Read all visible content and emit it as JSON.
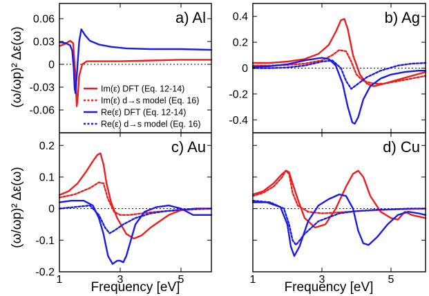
{
  "figure": {
    "xlabel": "Frequency [eV]",
    "ylabel": "(ω/ωp)² Δε(ω)",
    "legend": [
      {
        "label": "Im(ε) DFT (Eq. 12-14)",
        "color": "#ee1c1c",
        "dash": "solid"
      },
      {
        "label": "Im(ε) d→s model (Eq. 16)",
        "color": "#ee1c1c",
        "dash": "dashed"
      },
      {
        "label": "Re(ε) DFT (Eq. 12-14)",
        "color": "#1a1ae6",
        "dash": "solid"
      },
      {
        "label": "Re(ε) d→s model (Eq. 16)",
        "color": "#1a1ae6",
        "dash": "dashed"
      }
    ],
    "colors": {
      "im": "#ee1c1c",
      "re": "#1a1ae6"
    }
  },
  "chart_data": [
    {
      "type": "line",
      "label": "a) Al",
      "xlim": [
        1,
        6
      ],
      "ylim": [
        -0.09,
        0.08
      ],
      "xticks": [
        1,
        3,
        5
      ],
      "xtick_labels": [
        "",
        "",
        ""
      ],
      "yticks": [
        -0.06,
        -0.03,
        0,
        0.03,
        0.06
      ],
      "ytick_labels": [
        "-0.06",
        "-0.03",
        "0",
        "0.03",
        "0.06"
      ],
      "series": [
        {
          "name": "Im(ε) DFT (Eq. 12-14)",
          "part": "im",
          "dash": "solid",
          "x": [
            1.0,
            1.2,
            1.35,
            1.45,
            1.52,
            1.57,
            1.6,
            1.65,
            1.75,
            1.9,
            2.1,
            2.5,
            3.0,
            4.0,
            5.0,
            6.0
          ],
          "y": [
            0.024,
            0.027,
            0.031,
            0.028,
            -0.01,
            -0.055,
            -0.045,
            -0.015,
            0.0,
            0.004,
            0.004,
            0.004,
            0.004,
            0.005,
            0.006,
            0.006
          ]
        },
        {
          "name": "Re(ε) DFT (Eq. 12-14)",
          "part": "re",
          "dash": "solid",
          "x": [
            1.0,
            1.2,
            1.35,
            1.42,
            1.47,
            1.5,
            1.53,
            1.58,
            1.65,
            1.72,
            1.85,
            2.0,
            2.3,
            2.7,
            3.2,
            4.0,
            5.0,
            6.0
          ],
          "y": [
            0.029,
            0.028,
            0.025,
            0.018,
            -0.005,
            -0.032,
            -0.038,
            -0.01,
            0.03,
            0.046,
            0.038,
            0.031,
            0.026,
            0.023,
            0.021,
            0.02,
            0.02,
            0.019
          ]
        }
      ]
    },
    {
      "type": "line",
      "label": "b) Ag",
      "xlim": [
        1,
        6
      ],
      "ylim": [
        -0.5,
        0.5
      ],
      "xticks": [
        1,
        3,
        5
      ],
      "xtick_labels": [
        "",
        "",
        ""
      ],
      "yticks": [
        -0.4,
        -0.2,
        0,
        0.2,
        0.4
      ],
      "ytick_labels": [
        "-0.4",
        "-0.2",
        "0",
        "0.2",
        "0.4"
      ],
      "series": [
        {
          "name": "Im(ε) DFT (Eq. 12-14)",
          "part": "im",
          "dash": "solid",
          "x": [
            1.0,
            1.5,
            2.0,
            2.5,
            2.9,
            3.2,
            3.4,
            3.55,
            3.65,
            3.75,
            3.9,
            4.1,
            4.3,
            4.5,
            4.8,
            5.2,
            5.6,
            6.0
          ],
          "y": [
            0.04,
            0.04,
            0.05,
            0.07,
            0.11,
            0.18,
            0.28,
            0.37,
            0.38,
            0.3,
            0.1,
            -0.05,
            -0.12,
            -0.14,
            -0.12,
            -0.09,
            -0.06,
            -0.03
          ]
        },
        {
          "name": "Im(ε) d→s model (Eq. 16)",
          "part": "im",
          "dash": "dashed",
          "x": [
            1.0,
            1.5,
            2.0,
            2.5,
            3.0,
            3.3,
            3.5,
            3.7,
            3.85,
            4.0,
            4.2,
            4.5,
            4.8,
            5.2,
            5.6,
            6.0
          ],
          "y": [
            0.02,
            0.02,
            0.025,
            0.035,
            0.06,
            0.1,
            0.14,
            0.13,
            0.05,
            -0.05,
            -0.1,
            -0.12,
            -0.12,
            -0.1,
            -0.08,
            -0.06
          ]
        },
        {
          "name": "Re(ε) DFT (Eq. 12-14)",
          "part": "re",
          "dash": "solid",
          "x": [
            1.0,
            1.5,
            2.0,
            2.5,
            3.0,
            3.2,
            3.4,
            3.6,
            3.75,
            3.88,
            3.95,
            4.05,
            4.2,
            4.4,
            4.7,
            5.0,
            5.4,
            5.8,
            6.0
          ],
          "y": [
            0.01,
            0.015,
            0.03,
            0.06,
            0.08,
            0.07,
            0.02,
            -0.12,
            -0.3,
            -0.42,
            -0.43,
            -0.38,
            -0.24,
            -0.14,
            -0.08,
            -0.05,
            -0.03,
            -0.02,
            -0.02
          ]
        },
        {
          "name": "Re(ε) d→s model (Eq. 16)",
          "part": "re",
          "dash": "dashed",
          "x": [
            1.0,
            1.5,
            2.0,
            2.5,
            3.0,
            3.3,
            3.55,
            3.7,
            3.85,
            4.0,
            4.3,
            4.7,
            5.2,
            5.6,
            6.0
          ],
          "y": [
            0.0,
            0.0,
            0.005,
            0.02,
            0.05,
            0.06,
            0.0,
            -0.1,
            -0.16,
            -0.13,
            -0.07,
            -0.02,
            0.02,
            0.035,
            0.04
          ]
        }
      ]
    },
    {
      "type": "line",
      "label": "c) Au",
      "xlim": [
        1,
        6
      ],
      "ylim": [
        -0.2,
        0.24
      ],
      "xticks": [
        1,
        3,
        5
      ],
      "xtick_labels": [
        "1",
        "3",
        "5"
      ],
      "yticks": [
        -0.2,
        -0.1,
        0,
        0.1,
        0.2
      ],
      "ytick_labels": [
        "-0.2",
        "-0.1",
        "0",
        "0.1",
        "0.2"
      ],
      "series": [
        {
          "name": "Im(ε) DFT (Eq. 12-14)",
          "part": "im",
          "dash": "solid",
          "x": [
            1.0,
            1.3,
            1.6,
            1.9,
            2.1,
            2.25,
            2.35,
            2.45,
            2.55,
            2.7,
            2.9,
            3.2,
            3.45,
            3.7,
            4.0,
            4.3,
            4.6,
            5.0,
            5.5,
            6.0
          ],
          "y": [
            0.043,
            0.055,
            0.08,
            0.12,
            0.15,
            0.17,
            0.175,
            0.14,
            0.08,
            0.02,
            -0.03,
            -0.08,
            -0.095,
            -0.085,
            -0.06,
            -0.04,
            -0.02,
            -0.005,
            0.0,
            0.0
          ]
        },
        {
          "name": "Im(ε) d→s model (Eq. 16)",
          "part": "im",
          "dash": "dashed",
          "x": [
            1.0,
            1.5,
            2.0,
            2.3,
            2.45,
            2.6,
            2.8,
            3.0,
            3.3,
            3.7,
            4.2,
            5.0,
            6.0
          ],
          "y": [
            0.035,
            0.045,
            0.065,
            0.083,
            0.08,
            0.03,
            -0.01,
            -0.02,
            -0.02,
            -0.015,
            -0.01,
            -0.005,
            0.0
          ]
        },
        {
          "name": "Re(ε) DFT (Eq. 12-14)",
          "part": "re",
          "dash": "solid",
          "x": [
            1.0,
            1.4,
            1.8,
            2.1,
            2.3,
            2.45,
            2.6,
            2.75,
            2.9,
            3.0,
            3.1,
            3.2,
            3.35,
            3.5,
            3.8,
            4.2,
            4.6,
            5.0,
            5.4,
            5.8,
            6.0
          ],
          "y": [
            0.02,
            0.025,
            0.025,
            0.01,
            -0.03,
            -0.08,
            -0.15,
            -0.175,
            -0.165,
            -0.165,
            -0.17,
            -0.15,
            -0.1,
            -0.05,
            -0.01,
            0.005,
            0.01,
            0.0,
            -0.02,
            -0.02,
            -0.02
          ]
        },
        {
          "name": "Re(ε) d→s model (Eq. 16)",
          "part": "re",
          "dash": "dashed",
          "x": [
            1.0,
            1.5,
            2.0,
            2.3,
            2.5,
            2.65,
            2.8,
            3.1,
            3.5,
            4.0,
            4.5,
            5.0,
            5.5,
            6.0
          ],
          "y": [
            0.0,
            0.005,
            0.01,
            -0.02,
            -0.06,
            -0.078,
            -0.07,
            -0.05,
            -0.03,
            -0.015,
            -0.008,
            -0.003,
            0.0,
            0.0
          ]
        }
      ]
    },
    {
      "type": "line",
      "label": "d) Cu",
      "xlim": [
        1,
        6
      ],
      "ylim": [
        -0.2,
        0.24
      ],
      "xticks": [
        1,
        3,
        5
      ],
      "xtick_labels": [
        "1",
        "3",
        "5"
      ],
      "yticks": [
        -0.2,
        -0.1,
        0,
        0.1,
        0.2
      ],
      "ytick_labels": [
        "",
        "",
        "",
        "",
        ""
      ],
      "series": [
        {
          "name": "Im(ε) DFT (Eq. 12-14)",
          "part": "im",
          "dash": "solid",
          "x": [
            1.0,
            1.3,
            1.6,
            1.85,
            1.97,
            2.05,
            2.15,
            2.3,
            2.5,
            2.8,
            3.1,
            3.4,
            3.7,
            3.9,
            4.05,
            4.2,
            4.4,
            4.7,
            5.0,
            5.2,
            5.4,
            5.6,
            6.0
          ],
          "y": [
            0.045,
            0.055,
            0.08,
            0.11,
            0.12,
            0.115,
            0.08,
            0.03,
            -0.03,
            -0.06,
            -0.05,
            0.0,
            0.07,
            0.11,
            0.12,
            0.1,
            0.04,
            -0.01,
            -0.03,
            -0.035,
            -0.01,
            -0.02,
            -0.03
          ]
        },
        {
          "name": "Im(ε) d→s model (Eq. 16)",
          "part": "im",
          "dash": "dashed",
          "x": [
            1.0,
            1.3,
            1.6,
            1.85,
            1.95,
            2.05,
            2.15,
            2.3,
            2.6,
            3.0,
            3.5,
            4.0,
            5.0,
            6.0
          ],
          "y": [
            0.04,
            0.05,
            0.07,
            0.1,
            0.12,
            0.11,
            0.05,
            0.01,
            -0.01,
            -0.015,
            -0.012,
            -0.008,
            -0.003,
            0.0
          ]
        },
        {
          "name": "Re(ε) DFT (Eq. 12-14)",
          "part": "re",
          "dash": "solid",
          "x": [
            1.0,
            1.4,
            1.8,
            2.0,
            2.1,
            2.2,
            2.35,
            2.6,
            2.9,
            3.2,
            3.5,
            3.7,
            3.9,
            4.05,
            4.2,
            4.35,
            4.6,
            4.9,
            5.2,
            5.5,
            5.8,
            6.0
          ],
          "y": [
            0.02,
            0.02,
            0.005,
            -0.05,
            -0.12,
            -0.15,
            -0.12,
            -0.04,
            0.01,
            0.03,
            0.045,
            0.04,
            0.0,
            -0.07,
            -0.11,
            -0.115,
            -0.09,
            -0.05,
            -0.02,
            -0.01,
            -0.015,
            -0.02
          ]
        },
        {
          "name": "Re(ε) d→s model (Eq. 16)",
          "part": "re",
          "dash": "dashed",
          "x": [
            1.0,
            1.5,
            1.9,
            2.05,
            2.15,
            2.25,
            2.5,
            2.9,
            3.5,
            4.0,
            4.5,
            5.0,
            5.5,
            6.0
          ],
          "y": [
            0.025,
            0.02,
            0.0,
            -0.05,
            -0.1,
            -0.115,
            -0.08,
            -0.04,
            -0.015,
            -0.008,
            -0.004,
            -0.002,
            0.0,
            0.0
          ]
        }
      ]
    }
  ]
}
